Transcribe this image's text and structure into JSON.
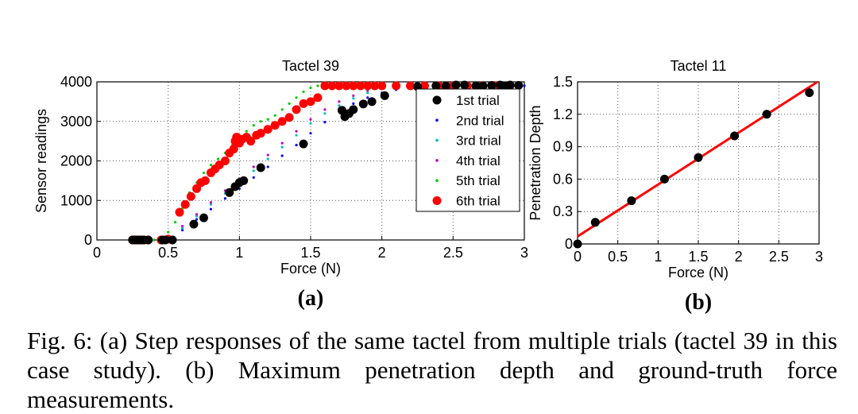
{
  "chart_data": [
    {
      "type": "scatter",
      "title": "Tactel 39",
      "xlabel": "Force (N)",
      "ylabel": "Sensor readings",
      "xlim": [
        0,
        3
      ],
      "ylim": [
        0,
        4000
      ],
      "xticks": [
        "0",
        "0.5",
        "1",
        "1.5",
        "2",
        "2.5",
        "3"
      ],
      "yticks": [
        "0",
        "1000",
        "2000",
        "3000",
        "4000"
      ],
      "grid": true,
      "legend": "top-right",
      "panel_label": "(a)",
      "series": [
        {
          "name": "1st trial",
          "color": "#000000",
          "marker": "large-dot",
          "x": [
            0.25,
            0.27,
            0.29,
            0.31,
            0.33,
            0.36,
            0.46,
            0.48,
            0.53,
            0.68,
            0.75,
            0.93,
            0.97,
            1.0,
            1.03,
            1.15,
            1.45,
            1.72,
            1.74,
            1.77,
            1.8,
            1.87,
            1.93,
            2.02,
            2.25,
            2.38,
            2.45,
            2.52,
            2.58,
            2.66,
            2.71,
            2.77,
            2.83,
            2.86,
            2.9,
            2.96
          ],
          "y": [
            0,
            0,
            0,
            0,
            0,
            0,
            0,
            0,
            0,
            400,
            560,
            1200,
            1350,
            1450,
            1500,
            1830,
            2430,
            3280,
            3120,
            3200,
            3300,
            3440,
            3500,
            3650,
            3880,
            3900,
            3900,
            3920,
            3920,
            3900,
            3900,
            3910,
            3920,
            3900,
            3920,
            3910
          ]
        },
        {
          "name": "2nd trial",
          "color": "#0000ff",
          "marker": "dot",
          "x": [
            0.3,
            0.35,
            0.4,
            0.45,
            0.5,
            0.6,
            0.7,
            0.8,
            0.9,
            1.0,
            1.1,
            1.2,
            1.3,
            1.4,
            1.5,
            1.6,
            1.7,
            1.8,
            1.9,
            2.0,
            2.1,
            2.2,
            2.3,
            2.4,
            2.5,
            2.6,
            2.7,
            2.8,
            2.9,
            3.0
          ],
          "y": [
            0,
            0,
            0,
            0,
            0,
            250,
            520,
            780,
            1050,
            1300,
            1580,
            1850,
            2130,
            2400,
            2700,
            2980,
            3250,
            3450,
            3600,
            3720,
            3800,
            3850,
            3880,
            3890,
            3900,
            3900,
            3900,
            3900,
            3900,
            3900
          ]
        },
        {
          "name": "3rd trial",
          "color": "#00bfbf",
          "marker": "dot",
          "x": [
            0.3,
            0.35,
            0.4,
            0.45,
            0.5,
            0.6,
            0.7,
            0.8,
            0.9,
            1.0,
            1.1,
            1.2,
            1.3,
            1.4,
            1.5,
            1.6,
            1.7,
            1.8,
            1.9,
            2.0,
            2.1,
            2.2,
            2.3,
            2.4,
            2.5
          ],
          "y": [
            0,
            0,
            0,
            0,
            0,
            300,
            600,
            900,
            1180,
            1450,
            1750,
            2050,
            2350,
            2650,
            2950,
            3200,
            3400,
            3580,
            3720,
            3820,
            3880,
            3900,
            3900,
            3900,
            3900
          ]
        },
        {
          "name": "4th trial",
          "color": "#bf00bf",
          "marker": "dot",
          "x": [
            0.3,
            0.35,
            0.4,
            0.45,
            0.5,
            0.6,
            0.7,
            0.8,
            0.9,
            1.0,
            1.1,
            1.2,
            1.3,
            1.4,
            1.5,
            1.6,
            1.7,
            1.8,
            1.9,
            2.0,
            2.1,
            2.2,
            2.3
          ],
          "y": [
            0,
            0,
            0,
            0,
            0,
            350,
            650,
            950,
            1250,
            1550,
            1850,
            2150,
            2450,
            2750,
            3050,
            3300,
            3500,
            3650,
            3780,
            3860,
            3890,
            3900,
            3900
          ]
        },
        {
          "name": "5th trial",
          "color": "#00cc00",
          "marker": "dot",
          "x": [
            0.3,
            0.35,
            0.4,
            0.45,
            0.5,
            0.55,
            0.6,
            0.65,
            0.7,
            0.75,
            0.8,
            0.85,
            0.9,
            0.95,
            1.0,
            1.05,
            1.1,
            1.15,
            1.2,
            1.25,
            1.3,
            1.35,
            1.4,
            1.45,
            1.5,
            1.55,
            1.6
          ],
          "y": [
            0,
            0,
            0,
            0,
            200,
            450,
            800,
            1200,
            1450,
            1700,
            1900,
            2050,
            2200,
            2400,
            2650,
            2750,
            2900,
            3000,
            3050,
            3150,
            3300,
            3450,
            3600,
            3750,
            3850,
            3900,
            3900
          ]
        },
        {
          "name": "6th trial",
          "color": "#ff0000",
          "marker": "large-dot",
          "x": [
            0.25,
            0.27,
            0.29,
            0.31,
            0.33,
            0.36,
            0.45,
            0.5,
            0.58,
            0.62,
            0.66,
            0.7,
            0.73,
            0.76,
            0.8,
            0.83,
            0.86,
            0.9,
            0.93,
            0.96,
            0.97,
            0.98,
            1.0,
            1.02,
            1.05,
            1.08,
            1.12,
            1.15,
            1.2,
            1.25,
            1.3,
            1.35,
            1.4,
            1.45,
            1.5,
            1.55,
            1.6,
            1.65,
            1.7,
            1.75,
            1.8,
            1.85,
            1.9,
            1.95,
            2.0,
            2.1,
            2.2,
            2.3,
            2.4,
            2.5,
            2.6,
            2.7,
            2.8,
            2.9
          ],
          "y": [
            0,
            0,
            0,
            0,
            0,
            0,
            0,
            20,
            700,
            900,
            1100,
            1300,
            1450,
            1500,
            1700,
            1800,
            1900,
            2000,
            2200,
            2300,
            2500,
            2600,
            2450,
            2550,
            2600,
            2500,
            2650,
            2700,
            2800,
            2900,
            3000,
            3100,
            3300,
            3450,
            3500,
            3600,
            3900,
            3900,
            3900,
            3900,
            3900,
            3900,
            3900,
            3900,
            3900,
            3900,
            3900,
            3900,
            3900,
            3900,
            3900,
            3900,
            3900,
            3900
          ]
        }
      ]
    },
    {
      "type": "scatter",
      "title": "Tactel 11",
      "xlabel": "Force (N)",
      "ylabel": "Penetration Depth",
      "xlim": [
        0,
        3
      ],
      "ylim": [
        0,
        1.5
      ],
      "xticks": [
        "0",
        "0.5",
        "1",
        "1.5",
        "2",
        "2.5",
        "3"
      ],
      "yticks": [
        "0",
        "0.3",
        "0.6",
        "0.9",
        "1.2",
        "1.5"
      ],
      "grid": true,
      "panel_label": "(b)",
      "points": {
        "x": [
          0,
          0.22,
          0.67,
          1.08,
          1.5,
          1.95,
          2.35,
          2.88
        ],
        "y": [
          0,
          0.2,
          0.4,
          0.6,
          0.8,
          1.0,
          1.2,
          1.4
        ],
        "color": "#000000"
      },
      "fit_line": {
        "x": [
          0,
          2.98
        ],
        "y": [
          0.07,
          1.5
        ],
        "color": "#ff0000"
      }
    }
  ],
  "caption": "Fig. 6: (a) Step responses of the same tactel from multiple trials (tactel 39 in this case study). (b) Maximum penetration depth and ground-truth force measurements."
}
